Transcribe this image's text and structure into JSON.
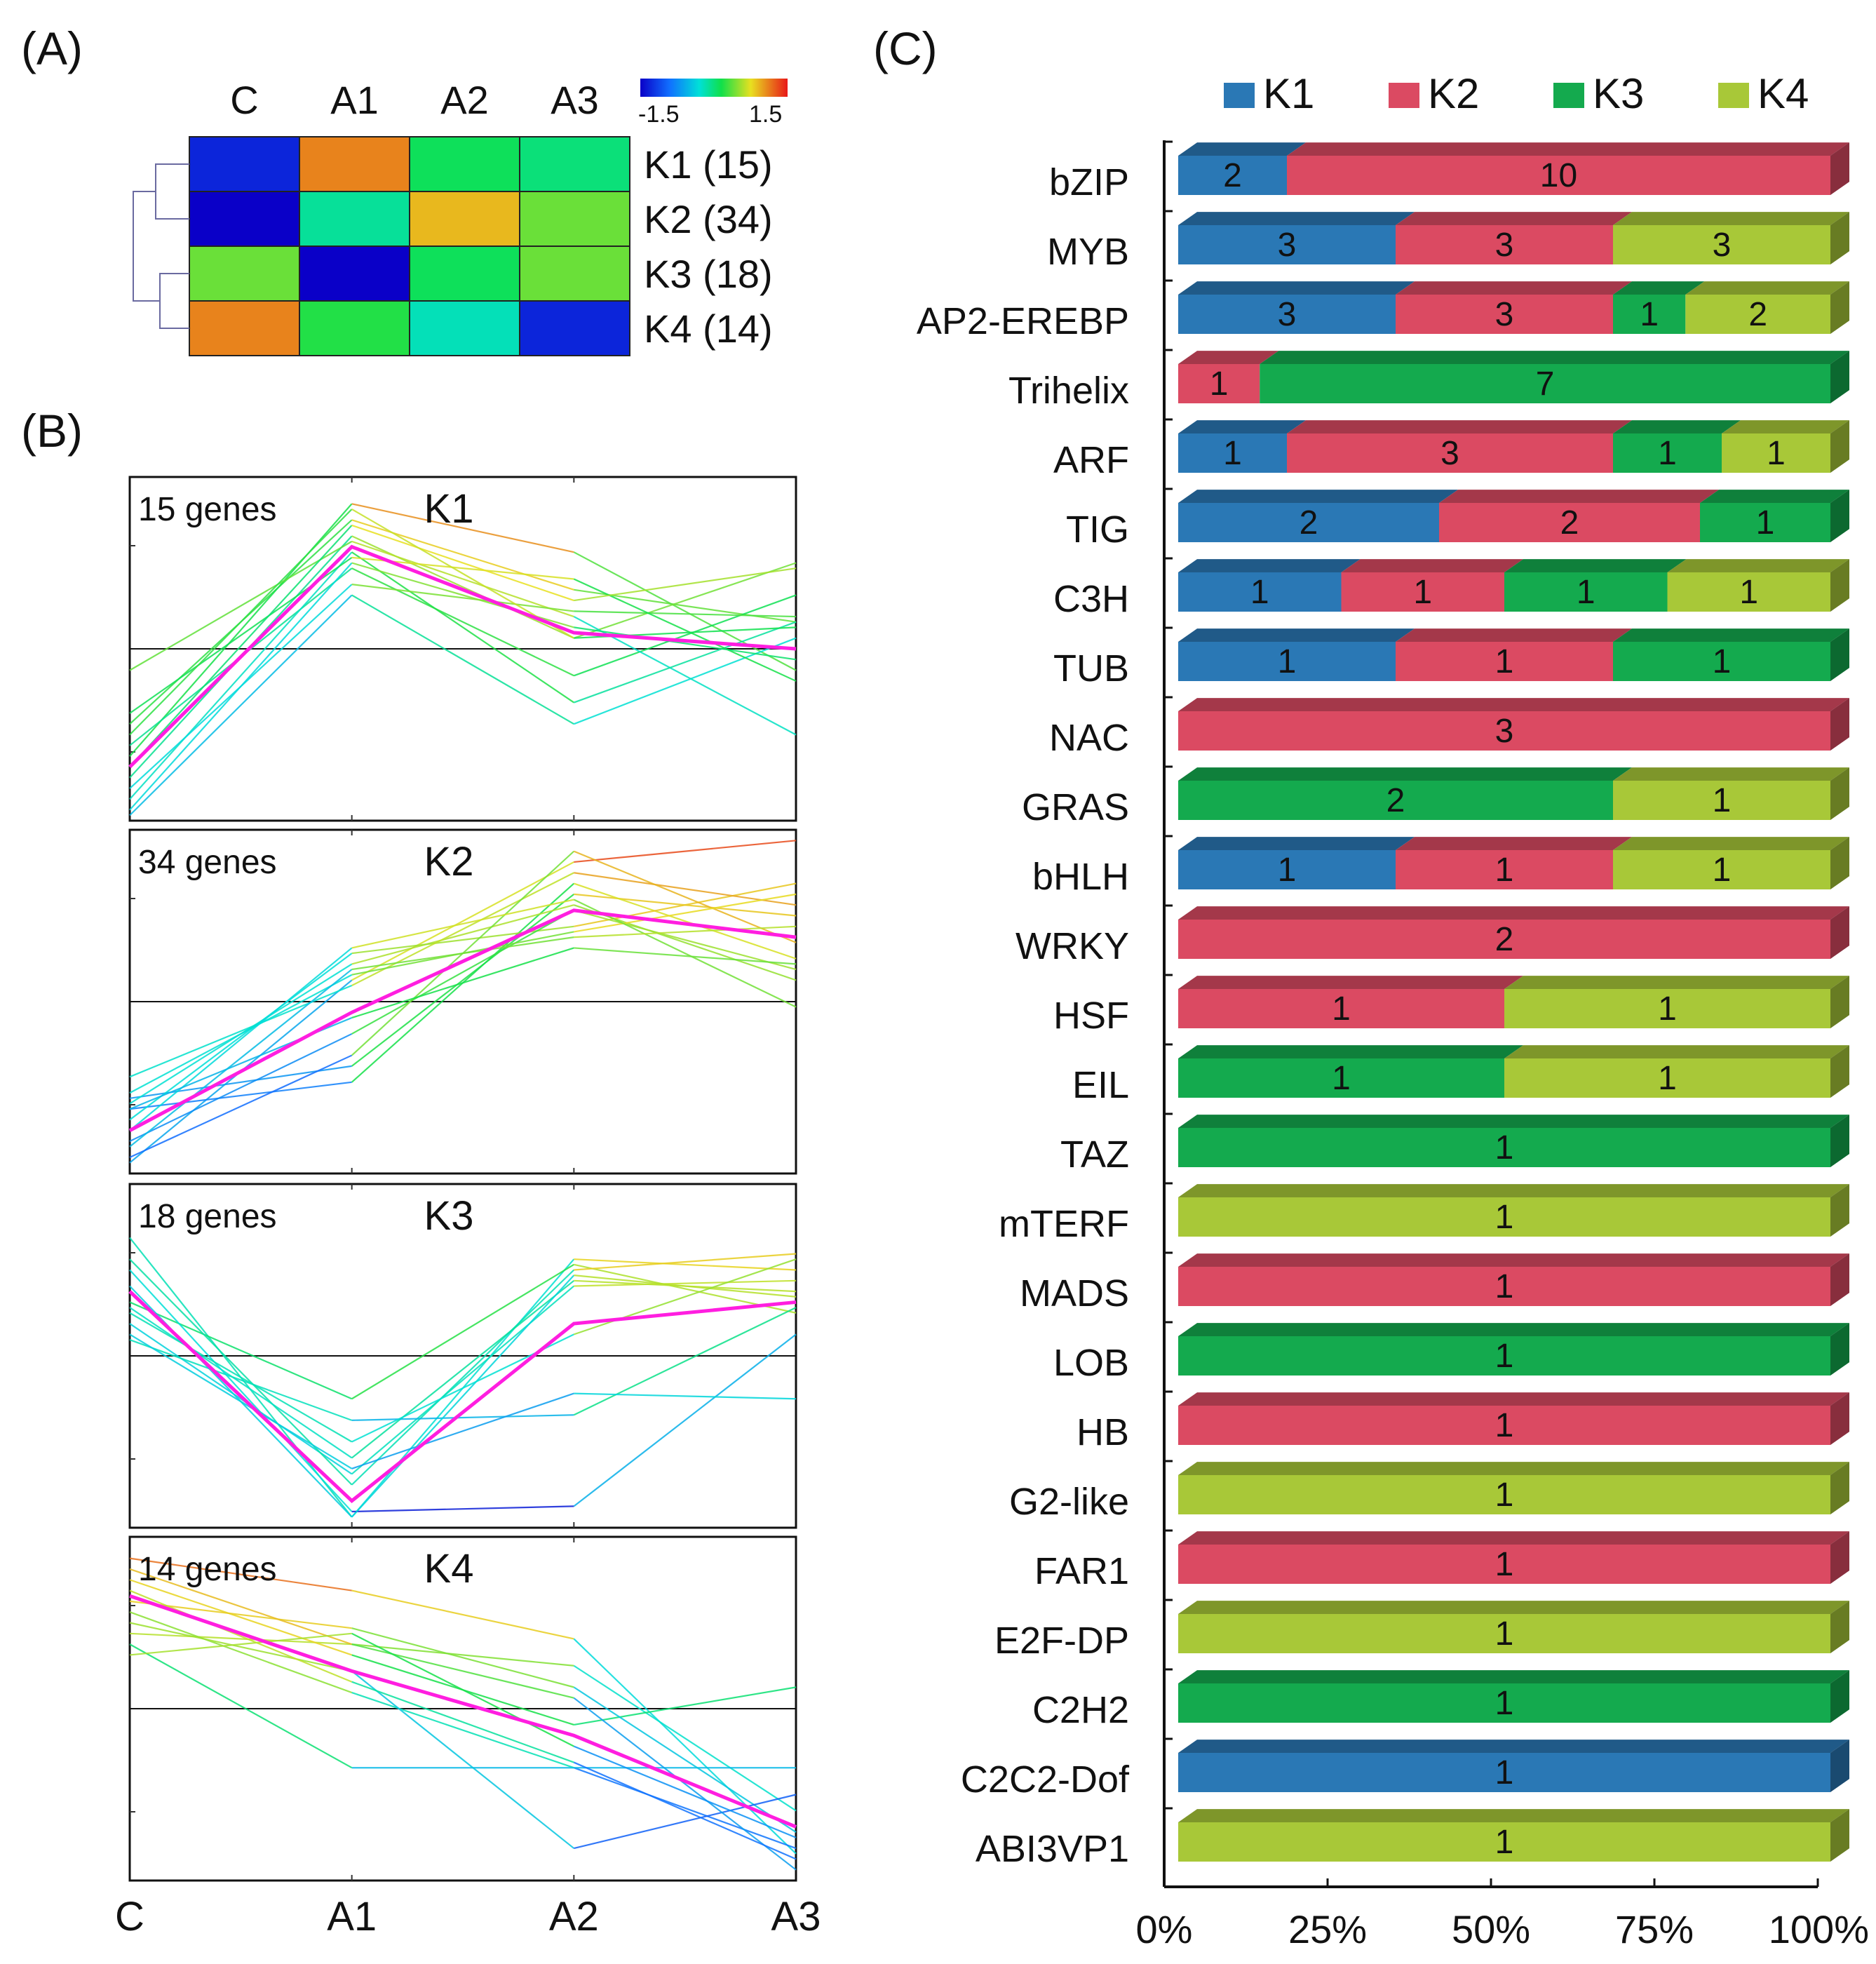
{
  "chart_data": [
    {
      "panel": "(A)",
      "type": "heatmap",
      "columns": [
        "C",
        "A1",
        "A2",
        "A3"
      ],
      "rows": [
        "K1 (15)",
        "K2 (34)",
        "K3 (18)",
        "K4 (14)"
      ],
      "values": [
        [
          -1.3,
          1.1,
          0.1,
          0.0
        ],
        [
          -1.5,
          -0.1,
          0.9,
          0.4
        ],
        [
          0.4,
          -1.5,
          0.1,
          0.4
        ],
        [
          1.1,
          0.2,
          -0.2,
          -1.3
        ]
      ],
      "colorbar": {
        "min_label": "-1.5",
        "max_label": "1.5",
        "min": -1.5,
        "max": 1.5
      },
      "dendrogram": {
        "merges": [
          [
            "K1",
            "K2"
          ],
          [
            "K3",
            "K4"
          ],
          [
            "K1-K2",
            "K3-K4"
          ]
        ]
      }
    },
    {
      "panel": "(B)",
      "type": "line",
      "x": [
        "C",
        "A1",
        "A2",
        "A3"
      ],
      "ylim": [
        -1.6,
        1.6
      ],
      "clusters": [
        {
          "name": "K1",
          "gene_label": "15 genes",
          "centroid": [
            -1.1,
            0.95,
            0.15,
            0.0
          ],
          "members": [
            [
              -0.7,
              1.2,
              0.55,
              0.25
            ],
            [
              -1.0,
              1.35,
              0.9,
              -0.2
            ],
            [
              -1.55,
              0.5,
              -0.7,
              0.1
            ],
            [
              -0.9,
              0.75,
              -0.25,
              0.5
            ],
            [
              -1.2,
              1.05,
              0.1,
              0.8
            ],
            [
              -0.2,
              1.0,
              0.3,
              -0.8
            ],
            [
              -1.4,
              0.9,
              -0.5,
              0.25
            ],
            [
              -1.3,
              0.6,
              0.35,
              0.3
            ],
            [
              -0.6,
              0.85,
              0.65,
              -0.3
            ],
            [
              -1.1,
              1.15,
              0.45,
              0.75
            ],
            [
              -1.5,
              0.8,
              0.2,
              -0.1
            ],
            [
              -0.8,
              1.3,
              0.1,
              0.2
            ]
          ]
        },
        {
          "name": "K2",
          "gene_label": "34 genes",
          "centroid": [
            -1.2,
            -0.1,
            0.85,
            0.6
          ],
          "members": [
            [
              -0.9,
              -0.6,
              1.0,
              0.8
            ],
            [
              -1.5,
              0.2,
              1.3,
              1.5
            ],
            [
              -1.0,
              -0.75,
              1.1,
              0.4
            ],
            [
              -0.95,
              0.35,
              0.9,
              0.2
            ],
            [
              -1.1,
              0.45,
              0.7,
              1.1
            ],
            [
              -1.3,
              -0.3,
              0.85,
              0.3
            ],
            [
              -0.7,
              0.15,
              1.2,
              0.9
            ],
            [
              -1.45,
              -0.5,
              1.4,
              0.55
            ],
            [
              -0.85,
              0.25,
              0.65,
              1.0
            ],
            [
              -1.2,
              0.5,
              0.95,
              -0.05
            ],
            [
              -1.0,
              -0.15,
              0.5,
              0.35
            ],
            [
              -1.35,
              0.3,
              0.6,
              0.7
            ]
          ]
        },
        {
          "name": "K3",
          "gene_label": "18 genes",
          "centroid": [
            0.6,
            -1.35,
            0.3,
            0.5
          ],
          "members": [
            [
              1.1,
              -1.5,
              0.9,
              0.8
            ],
            [
              0.3,
              -1.1,
              0.65,
              0.7
            ],
            [
              0.5,
              -0.4,
              0.85,
              0.4
            ],
            [
              0.9,
              -1.2,
              0.8,
              0.95
            ],
            [
              0.45,
              -0.95,
              0.7,
              0.6
            ],
            [
              0.15,
              -0.6,
              -0.55,
              0.45
            ],
            [
              0.8,
              -1.45,
              -1.4,
              0.2
            ],
            [
              0.2,
              -1.05,
              -0.35,
              -0.4
            ],
            [
              0.65,
              -1.5,
              0.75,
              0.55
            ],
            [
              0.4,
              -0.8,
              0.2,
              0.9
            ]
          ]
        },
        {
          "name": "K4",
          "gene_label": "14 genes",
          "centroid": [
            1.05,
            0.35,
            -0.25,
            -1.1
          ],
          "members": [
            [
              1.4,
              1.1,
              0.65,
              -1.35
            ],
            [
              0.7,
              0.6,
              0.4,
              -0.95
            ],
            [
              0.9,
              0.15,
              -0.55,
              -1.3
            ],
            [
              1.2,
              0.5,
              -0.15,
              0.2
            ],
            [
              0.6,
              -0.55,
              -0.55,
              -0.55
            ],
            [
              1.0,
              0.75,
              0.2,
              -1.15
            ],
            [
              0.8,
              0.35,
              -1.3,
              -0.8
            ],
            [
              1.3,
              0.6,
              0.1,
              -1.5
            ],
            [
              0.5,
              0.7,
              -0.35,
              -1.2
            ],
            [
              1.1,
              0.25,
              -0.5,
              -1.4
            ]
          ]
        }
      ]
    },
    {
      "panel": "(C)",
      "type": "bar",
      "orientation": "horizontal",
      "stacked": true,
      "percent": true,
      "legend": [
        "K1",
        "K2",
        "K3",
        "K4"
      ],
      "colors": {
        "K1": "#2a78b5",
        "K2": "#db4a62",
        "K3": "#14aa4e",
        "K4": "#a8c838"
      },
      "x_ticks": [
        "0%",
        "25%",
        "50%",
        "75%",
        "100%"
      ],
      "categories": [
        "bZIP",
        "MYB",
        "AP2-EREBP",
        "Trihelix",
        "ARF",
        "TIG",
        "C3H",
        "TUB",
        "NAC",
        "GRAS",
        "bHLH",
        "WRKY",
        "HSF",
        "EIL",
        "TAZ",
        "mTERF",
        "MADS",
        "LOB",
        "HB",
        "G2-like",
        "FAR1",
        "E2F-DP",
        "C2H2",
        "C2C2-Dof",
        "ABI3VP1"
      ],
      "series": [
        {
          "name": "K1",
          "values": [
            2,
            3,
            3,
            0,
            1,
            2,
            1,
            1,
            0,
            0,
            1,
            0,
            0,
            0,
            0,
            0,
            0,
            0,
            0,
            0,
            0,
            0,
            0,
            1,
            0
          ]
        },
        {
          "name": "K2",
          "values": [
            10,
            3,
            3,
            1,
            3,
            2,
            1,
            1,
            3,
            0,
            1,
            2,
            1,
            0,
            0,
            0,
            1,
            0,
            1,
            0,
            1,
            0,
            0,
            0,
            0
          ]
        },
        {
          "name": "K3",
          "values": [
            0,
            0,
            1,
            7,
            1,
            1,
            1,
            1,
            0,
            2,
            0,
            0,
            0,
            1,
            1,
            0,
            0,
            1,
            0,
            0,
            0,
            0,
            1,
            0,
            0
          ]
        },
        {
          "name": "K4",
          "values": [
            0,
            3,
            2,
            0,
            1,
            0,
            1,
            0,
            0,
            1,
            1,
            0,
            1,
            1,
            0,
            1,
            0,
            0,
            0,
            1,
            0,
            1,
            0,
            0,
            1
          ]
        }
      ]
    }
  ]
}
